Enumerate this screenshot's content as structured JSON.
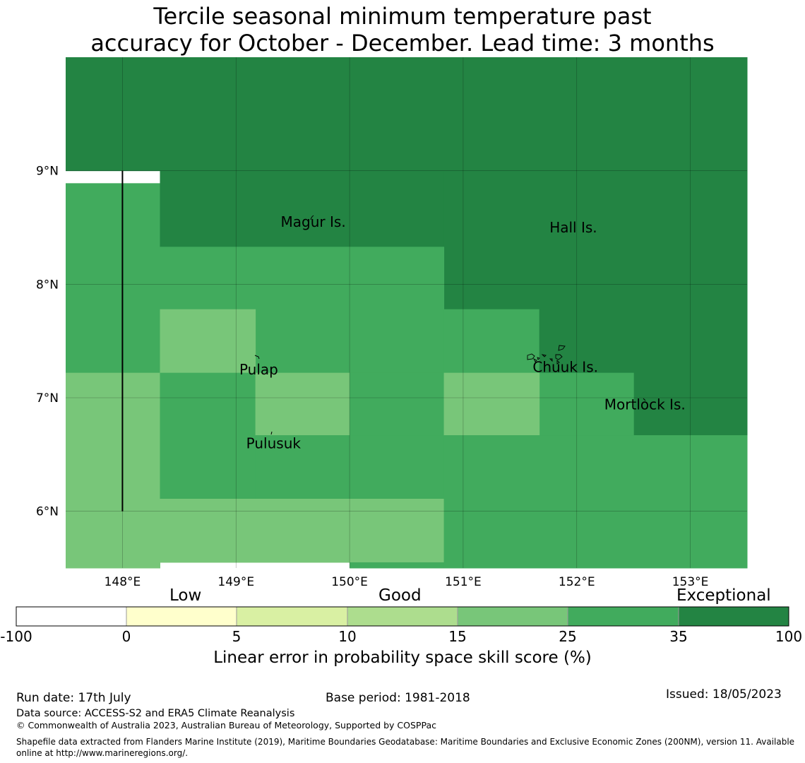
{
  "title": {
    "line1": "Tercile seasonal minimum temperature past",
    "line2": "accuracy for October - December. Lead time: 3 months"
  },
  "map": {
    "lon_range": [
      147.5,
      153.5
    ],
    "lat_range": [
      5.5,
      10.0
    ],
    "lon_ticks": [
      "148°E",
      "149°E",
      "150°E",
      "151°E",
      "152°E",
      "153°E"
    ],
    "lat_ticks": [
      "9°N",
      "8°N",
      "7°N",
      "6°N"
    ],
    "places": [
      {
        "name": "Magur Is.",
        "lon": 149.68,
        "lat": 8.55
      },
      {
        "name": "Hall Is.",
        "lon": 151.97,
        "lat": 8.5
      },
      {
        "name": "Pulap",
        "lon": 149.2,
        "lat": 7.25
      },
      {
        "name": "Chuuk Is.",
        "lon": 151.9,
        "lat": 7.27
      },
      {
        "name": "Mortlock Is.",
        "lon": 152.6,
        "lat": 6.94
      },
      {
        "name": "Pulusuk",
        "lon": 149.33,
        "lat": 6.6
      }
    ],
    "skill_cells": [
      {
        "lon": [
          147.5,
          153.5
        ],
        "lat": [
          9.0,
          10.0
        ],
        "class": "exceptional"
      },
      {
        "lon": [
          147.5,
          148.33
        ],
        "lat": [
          7.22,
          8.89
        ],
        "class": "25-35"
      },
      {
        "lon": [
          148.33,
          150.83
        ],
        "lat": [
          8.33,
          9.0
        ],
        "class": "exceptional"
      },
      {
        "lon": [
          150.83,
          153.5
        ],
        "lat": [
          7.78,
          9.0
        ],
        "class": "exceptional"
      },
      {
        "lon": [
          148.33,
          150.83
        ],
        "lat": [
          7.22,
          8.33
        ],
        "class": "25-35"
      },
      {
        "lon": [
          148.33,
          149.17
        ],
        "lat": [
          7.22,
          7.78
        ],
        "class": "15-25"
      },
      {
        "lon": [
          150.83,
          151.67
        ],
        "lat": [
          7.22,
          7.78
        ],
        "class": "25-35"
      },
      {
        "lon": [
          151.67,
          153.5
        ],
        "lat": [
          6.67,
          7.78
        ],
        "class": "exceptional"
      },
      {
        "lon": [
          151.67,
          152.5
        ],
        "lat": [
          6.67,
          7.22
        ],
        "class": "25-35"
      },
      {
        "lon": [
          147.5,
          148.33
        ],
        "lat": [
          5.5,
          7.22
        ],
        "class": "15-25"
      },
      {
        "lon": [
          148.33,
          149.17
        ],
        "lat": [
          6.11,
          7.22
        ],
        "class": "25-35"
      },
      {
        "lon": [
          149.17,
          150.0
        ],
        "lat": [
          6.67,
          7.22
        ],
        "class": "15-25"
      },
      {
        "lon": [
          149.17,
          150.83
        ],
        "lat": [
          6.11,
          6.67
        ],
        "class": "25-35"
      },
      {
        "lon": [
          150.0,
          150.83
        ],
        "lat": [
          6.67,
          7.22
        ],
        "class": "25-35"
      },
      {
        "lon": [
          150.83,
          151.67
        ],
        "lat": [
          6.67,
          7.22
        ],
        "class": "15-25"
      },
      {
        "lon": [
          148.33,
          150.83
        ],
        "lat": [
          5.55,
          6.11
        ],
        "class": "15-25"
      },
      {
        "lon": [
          150.0,
          150.83
        ],
        "lat": [
          5.5,
          5.55
        ],
        "class": "25-35"
      },
      {
        "lon": [
          150.83,
          153.5
        ],
        "lat": [
          5.5,
          6.67
        ],
        "class": "25-35"
      }
    ],
    "boundary_line": {
      "lon": 148.0,
      "lat": [
        6.0,
        9.0
      ]
    }
  },
  "colorbar": {
    "categories": [
      "Low",
      "Good",
      "Exceptional"
    ],
    "ticks": [
      "-100",
      "0",
      "5",
      "10",
      "15",
      "25",
      "35",
      "100"
    ],
    "colors": [
      "#ffffff",
      "#ffffcc",
      "#d9f0a3",
      "#addd8e",
      "#78c679",
      "#41ab5d",
      "#238443"
    ],
    "label": "Linear error in probability space skill score (%)"
  },
  "class_colors": {
    "15-25": "#78c679",
    "25-35": "#41ab5d",
    "exceptional": "#238443"
  },
  "footer": {
    "run_date": "Run date: 17th July",
    "base_period": "Base period: 1981-2018",
    "issued": "Issued: 18/05/2023",
    "data_source": "Data source: ACCESS-S2 and ERA5 Climate Reanalysis",
    "copyright": "© Commonwealth of Australia 2023, Australian Bureau of Meteorology, Supported by COSPPac",
    "shapefile": "Shapefile data extracted from Flanders Marine Institute (2019), Maritime Boundaries Geodatabase: Maritime Boundaries and Exclusive Economic Zones (200NM), version 11. Available online at http://www.marineregions.org/."
  }
}
